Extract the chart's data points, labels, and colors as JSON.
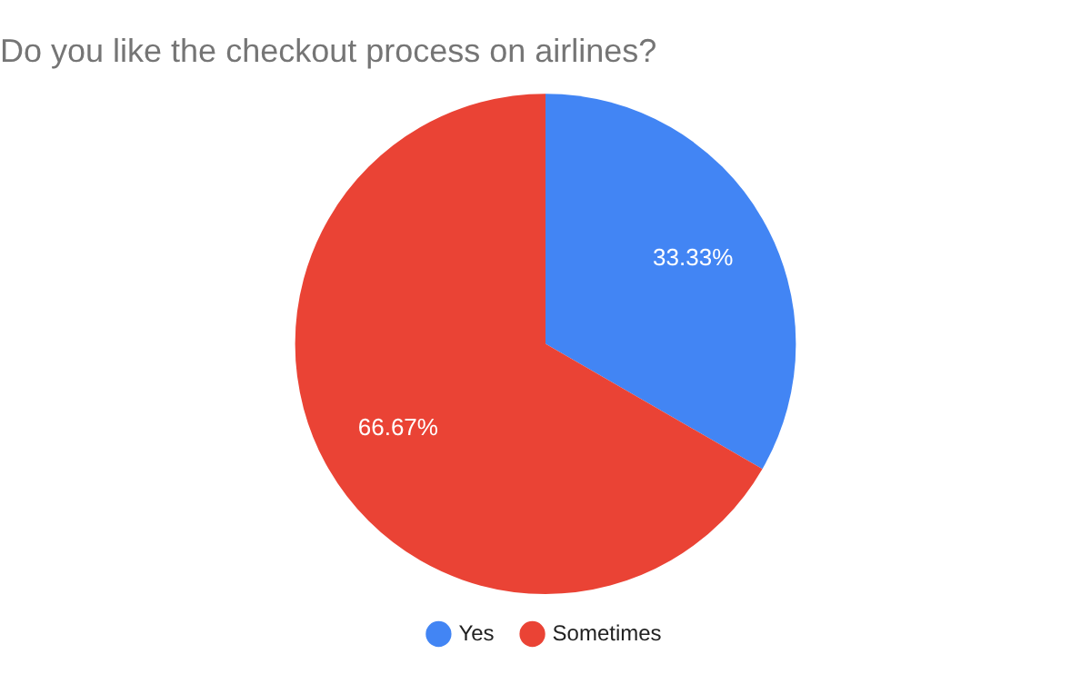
{
  "chart_data": {
    "type": "pie",
    "title": "Do you like the checkout process on airlines?",
    "categories": [
      "Yes",
      "Sometimes"
    ],
    "values": [
      33.33,
      66.67
    ],
    "colors": [
      "#4285f4",
      "#ea4335"
    ],
    "value_labels": [
      "33.33%",
      "66.67%"
    ],
    "legend": "bottom"
  }
}
